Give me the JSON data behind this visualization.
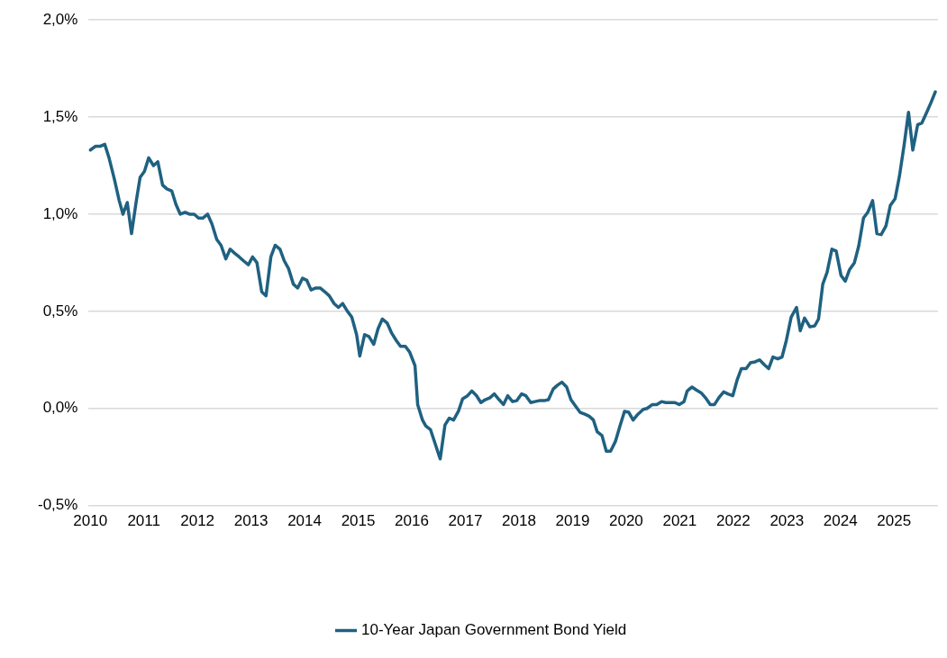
{
  "chart_data": {
    "type": "line",
    "x": [
      2010.0,
      2010.1,
      2010.19,
      2010.27,
      2010.35,
      2010.45,
      2010.54,
      2010.61,
      2010.69,
      2010.77,
      2010.86,
      2010.93,
      2011.01,
      2011.09,
      2011.18,
      2011.26,
      2011.35,
      2011.43,
      2011.52,
      2011.6,
      2011.68,
      2011.77,
      2011.85,
      2011.94,
      2012.02,
      2012.1,
      2012.19,
      2012.27,
      2012.36,
      2012.44,
      2012.53,
      2012.61,
      2012.69,
      2012.78,
      2012.86,
      2012.95,
      2013.03,
      2013.11,
      2013.2,
      2013.28,
      2013.37,
      2013.45,
      2013.54,
      2013.62,
      2013.7,
      2013.79,
      2013.87,
      2013.96,
      2014.04,
      2014.12,
      2014.21,
      2014.29,
      2014.38,
      2014.46,
      2014.55,
      2014.63,
      2014.71,
      2014.8,
      2014.88,
      2014.97,
      2015.03,
      2015.12,
      2015.2,
      2015.29,
      2015.37,
      2015.45,
      2015.54,
      2015.62,
      2015.71,
      2015.79,
      2015.88,
      2015.96,
      2016.06,
      2016.11,
      2016.2,
      2016.26,
      2016.35,
      2016.41,
      2016.53,
      2016.62,
      2016.7,
      2016.78,
      2016.87,
      2016.95,
      2017.04,
      2017.12,
      2017.21,
      2017.29,
      2017.37,
      2017.46,
      2017.54,
      2017.63,
      2017.71,
      2017.79,
      2017.88,
      2017.96,
      2018.05,
      2018.13,
      2018.22,
      2018.3,
      2018.38,
      2018.47,
      2018.55,
      2018.64,
      2018.72,
      2018.8,
      2018.89,
      2018.97,
      2019.06,
      2019.14,
      2019.23,
      2019.31,
      2019.39,
      2019.46,
      2019.55,
      2019.63,
      2019.71,
      2019.8,
      2019.88,
      2019.97,
      2020.05,
      2020.13,
      2020.22,
      2020.32,
      2020.39,
      2020.49,
      2020.57,
      2020.66,
      2020.74,
      2020.82,
      2020.91,
      2020.99,
      2021.08,
      2021.14,
      2021.23,
      2021.31,
      2021.4,
      2021.48,
      2021.57,
      2021.65,
      2021.73,
      2021.82,
      2021.9,
      2021.99,
      2022.07,
      2022.15,
      2022.24,
      2022.32,
      2022.41,
      2022.49,
      2022.58,
      2022.66,
      2022.74,
      2022.83,
      2022.91,
      2022.99,
      2023.08,
      2023.18,
      2023.25,
      2023.33,
      2023.43,
      2023.52,
      2023.59,
      2023.67,
      2023.75,
      2023.84,
      2023.92,
      2024.01,
      2024.09,
      2024.17,
      2024.26,
      2024.34,
      2024.43,
      2024.51,
      2024.6,
      2024.68,
      2024.76,
      2024.85,
      2024.93,
      2025.02,
      2025.1,
      2025.19,
      2025.27,
      2025.35,
      2025.44,
      2025.52,
      2025.61,
      2025.69,
      2025.77
    ],
    "series": [
      {
        "name": "10-Year Japan Government Bond Yield",
        "color": "#1f6181",
        "values": [
          1.33,
          1.35,
          1.35,
          1.36,
          1.29,
          1.18,
          1.07,
          1.0,
          1.06,
          0.9,
          1.07,
          1.19,
          1.22,
          1.29,
          1.25,
          1.27,
          1.15,
          1.13,
          1.12,
          1.05,
          1.0,
          1.01,
          1.0,
          1.0,
          0.98,
          0.98,
          1.0,
          0.95,
          0.87,
          0.84,
          0.77,
          0.82,
          0.8,
          0.78,
          0.76,
          0.74,
          0.78,
          0.75,
          0.6,
          0.58,
          0.78,
          0.84,
          0.82,
          0.76,
          0.72,
          0.64,
          0.62,
          0.67,
          0.66,
          0.61,
          0.62,
          0.62,
          0.6,
          0.58,
          0.54,
          0.52,
          0.54,
          0.5,
          0.47,
          0.38,
          0.27,
          0.38,
          0.37,
          0.33,
          0.41,
          0.46,
          0.44,
          0.39,
          0.35,
          0.32,
          0.32,
          0.29,
          0.22,
          0.02,
          -0.06,
          -0.09,
          -0.11,
          -0.16,
          -0.26,
          -0.085,
          -0.05,
          -0.06,
          -0.015,
          0.05,
          0.065,
          0.09,
          0.065,
          0.03,
          0.045,
          0.055,
          0.075,
          0.045,
          0.02,
          0.065,
          0.035,
          0.04,
          0.075,
          0.065,
          0.03,
          0.035,
          0.04,
          0.04,
          0.045,
          0.1,
          0.12,
          0.135,
          0.11,
          0.045,
          0.01,
          -0.02,
          -0.03,
          -0.04,
          -0.06,
          -0.12,
          -0.14,
          -0.22,
          -0.22,
          -0.17,
          -0.095,
          -0.015,
          -0.02,
          -0.06,
          -0.03,
          -0.005,
          0.0,
          0.02,
          0.02,
          0.035,
          0.03,
          0.03,
          0.03,
          0.02,
          0.035,
          0.09,
          0.11,
          0.095,
          0.08,
          0.055,
          0.02,
          0.02,
          0.055,
          0.085,
          0.075,
          0.065,
          0.145,
          0.205,
          0.205,
          0.235,
          0.24,
          0.25,
          0.225,
          0.205,
          0.265,
          0.255,
          0.265,
          0.35,
          0.47,
          0.52,
          0.4,
          0.465,
          0.42,
          0.425,
          0.46,
          0.64,
          0.7,
          0.82,
          0.81,
          0.685,
          0.655,
          0.715,
          0.75,
          0.835,
          0.98,
          1.01,
          1.07,
          0.9,
          0.895,
          0.94,
          1.045,
          1.08,
          1.195,
          1.36,
          1.525,
          1.33,
          1.46,
          1.47,
          1.525,
          1.575,
          1.63
        ]
      }
    ],
    "xlim": [
      2009.97,
      2025.82
    ],
    "xticks": [
      2010,
      2011,
      2012,
      2013,
      2014,
      2015,
      2016,
      2017,
      2018,
      2019,
      2020,
      2021,
      2022,
      2023,
      2024,
      2025
    ],
    "ylim": [
      -0.5,
      2
    ],
    "yticks": [
      {
        "value": -0.5,
        "label": "-0,5%"
      },
      {
        "value": 0,
        "label": "0,0%"
      },
      {
        "value": 0.5,
        "label": "0,5%"
      },
      {
        "value": 1,
        "label": "1,0%"
      },
      {
        "value": 1.5,
        "label": "1,5%"
      },
      {
        "value": 2,
        "label": "2,0%"
      }
    ],
    "grid": "y",
    "legend": "bottom",
    "marker": "none",
    "line_style": "solid"
  }
}
